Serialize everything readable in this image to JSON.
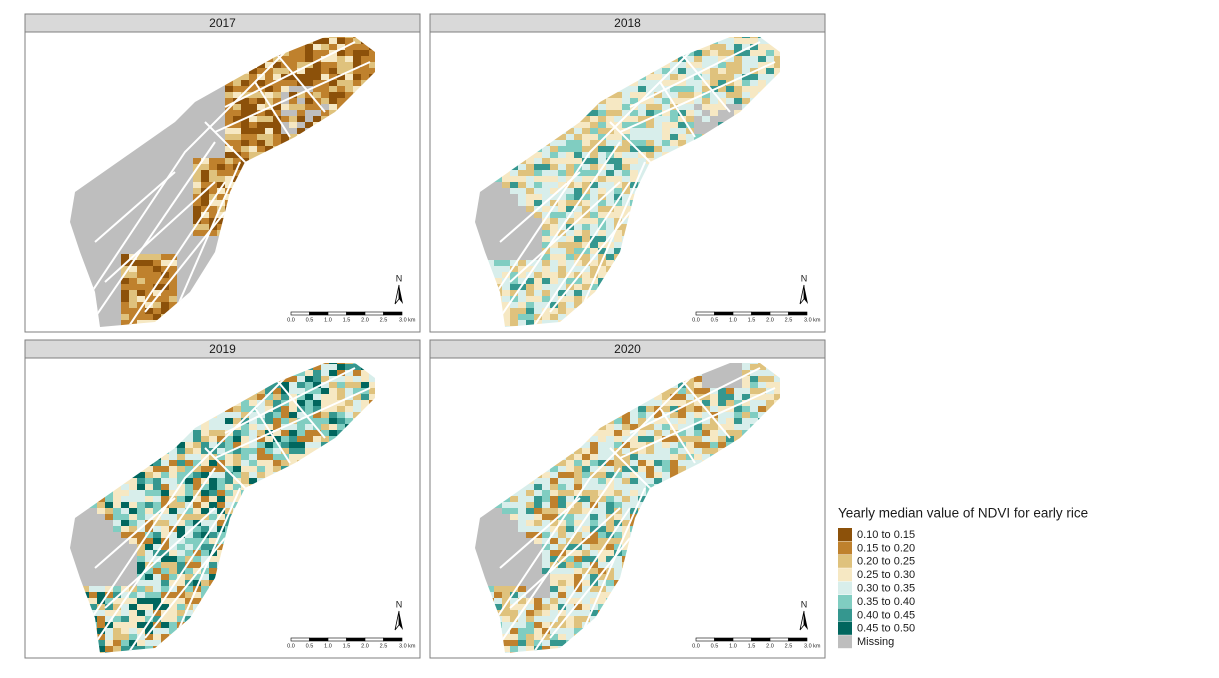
{
  "panels": [
    {
      "title": "2017"
    },
    {
      "title": "2018"
    },
    {
      "title": "2019"
    },
    {
      "title": "2020"
    }
  ],
  "north_label": "N",
  "scale_bar": {
    "labels": [
      "0.0",
      "0.5",
      "1.0",
      "1.5",
      "2.0",
      "2.5",
      "3.0 km"
    ]
  },
  "legend": {
    "title": "Yearly median value of NDVI for early rice",
    "items": [
      {
        "label": "0.10 to 0.15",
        "color": "#8c510a"
      },
      {
        "label": "0.15 to 0.20",
        "color": "#bf812d"
      },
      {
        "label": "0.20 to 0.25",
        "color": "#dfc27d"
      },
      {
        "label": "0.25 to 0.30",
        "color": "#f6e8c3"
      },
      {
        "label": "0.30 to 0.35",
        "color": "#d8eeeb"
      },
      {
        "label": "0.35 to 0.40",
        "color": "#80cdc1"
      },
      {
        "label": "0.40 to 0.45",
        "color": "#35978f"
      },
      {
        "label": "0.45 to 0.50",
        "color": "#01665e"
      },
      {
        "label": "Missing",
        "color": "#bebebe"
      }
    ]
  }
}
